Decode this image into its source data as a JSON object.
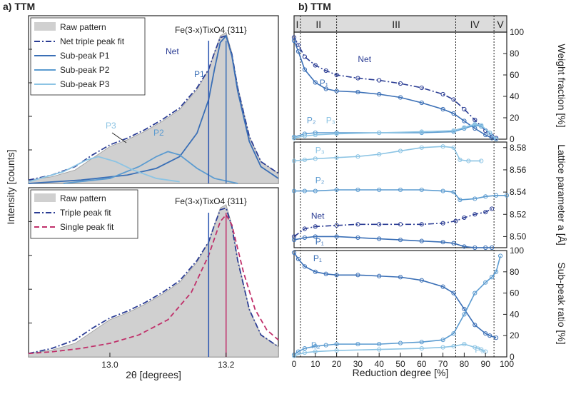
{
  "chart_data": [
    {
      "id": "a_top",
      "type": "line",
      "panel_title": "a) TTM",
      "annotation": "Fe(3-x)TixO4 {311}",
      "legend": [
        "Raw pattern",
        "Net triple peak fit",
        "Sub-peak P1",
        "Sub-peak P2",
        "Sub-peak P3"
      ],
      "peak_labels": [
        "Net",
        "P1",
        "P2",
        "P3"
      ],
      "xlim": [
        12.86,
        13.29
      ],
      "markers": [
        {
          "name": "Net",
          "x": 13.17
        },
        {
          "name": "P1",
          "x": 13.2
        }
      ],
      "series": [
        {
          "name": "Raw pattern",
          "x": [
            12.86,
            12.9,
            12.94,
            12.97,
            13.0,
            13.03,
            13.06,
            13.09,
            13.12,
            13.15,
            13.17,
            13.18,
            13.19,
            13.2,
            13.21,
            13.22,
            13.24,
            13.26,
            13.29
          ],
          "y": [
            0.02,
            0.04,
            0.08,
            0.15,
            0.22,
            0.26,
            0.31,
            0.37,
            0.44,
            0.56,
            0.68,
            0.78,
            0.88,
            0.9,
            0.78,
            0.58,
            0.28,
            0.13,
            0.06
          ]
        },
        {
          "name": "Net triple peak fit",
          "x": [
            12.86,
            12.9,
            12.94,
            12.97,
            13.0,
            13.03,
            13.06,
            13.09,
            13.12,
            13.15,
            13.17,
            13.18,
            13.19,
            13.2,
            13.21,
            13.22,
            13.24,
            13.26,
            13.29
          ],
          "y": [
            0.02,
            0.05,
            0.1,
            0.17,
            0.23,
            0.27,
            0.32,
            0.38,
            0.45,
            0.57,
            0.68,
            0.78,
            0.87,
            0.88,
            0.77,
            0.57,
            0.28,
            0.13,
            0.06
          ]
        },
        {
          "name": "Sub-peak P1",
          "x": [
            12.86,
            12.95,
            13.03,
            13.08,
            13.12,
            13.15,
            13.17,
            13.18,
            13.19,
            13.2,
            13.21,
            13.22,
            13.24,
            13.26,
            13.29
          ],
          "y": [
            0.0,
            0.02,
            0.05,
            0.09,
            0.16,
            0.3,
            0.5,
            0.68,
            0.84,
            0.88,
            0.76,
            0.55,
            0.25,
            0.1,
            0.03
          ]
        },
        {
          "name": "Sub-peak P2",
          "x": [
            12.92,
            13.0,
            13.05,
            13.08,
            13.1,
            13.12,
            13.15,
            13.18,
            13.22
          ],
          "y": [
            0.0,
            0.03,
            0.1,
            0.16,
            0.19,
            0.17,
            0.09,
            0.03,
            0.0
          ]
        },
        {
          "name": "Sub-peak P3",
          "x": [
            12.86,
            12.92,
            12.96,
            12.98,
            13.01,
            13.04,
            13.08,
            13.12
          ],
          "y": [
            0.01,
            0.07,
            0.14,
            0.16,
            0.13,
            0.08,
            0.03,
            0.01
          ]
        }
      ]
    },
    {
      "id": "a_bottom",
      "type": "line",
      "annotation": "Fe(3-x)TixO4 {311}",
      "legend": [
        "Raw pattern",
        "Triple peak fit",
        "Single peak fit"
      ],
      "xlabel": "2θ  [degrees]",
      "ylabel": "Intensity  [counts]",
      "xticks": [
        13.0,
        13.2
      ],
      "tick_labels": [
        "13.0",
        "13.2"
      ],
      "xlim": [
        12.86,
        13.29
      ],
      "markers": [
        {
          "name": "Triple",
          "x": 13.17
        },
        {
          "name": "Single",
          "x": 13.2
        }
      ],
      "series": [
        {
          "name": "Raw pattern",
          "x": [
            12.86,
            12.9,
            12.94,
            12.97,
            13.0,
            13.03,
            13.06,
            13.09,
            13.12,
            13.15,
            13.17,
            13.18,
            13.19,
            13.2,
            13.21,
            13.22,
            13.24,
            13.26,
            13.29
          ],
          "y": [
            0.02,
            0.04,
            0.08,
            0.15,
            0.22,
            0.26,
            0.31,
            0.37,
            0.44,
            0.56,
            0.68,
            0.78,
            0.88,
            0.9,
            0.78,
            0.58,
            0.28,
            0.13,
            0.06
          ]
        },
        {
          "name": "Triple peak fit",
          "x": [
            12.86,
            12.9,
            12.94,
            12.97,
            13.0,
            13.03,
            13.06,
            13.09,
            13.12,
            13.15,
            13.17,
            13.18,
            13.19,
            13.2,
            13.21,
            13.22,
            13.24,
            13.26,
            13.29
          ],
          "y": [
            0.02,
            0.05,
            0.1,
            0.17,
            0.23,
            0.27,
            0.32,
            0.38,
            0.45,
            0.57,
            0.68,
            0.78,
            0.87,
            0.88,
            0.77,
            0.57,
            0.28,
            0.13,
            0.06
          ]
        },
        {
          "name": "Single peak fit",
          "x": [
            12.86,
            12.9,
            12.95,
            13.0,
            13.05,
            13.1,
            13.14,
            13.17,
            13.19,
            13.2,
            13.21,
            13.23,
            13.25,
            13.27,
            13.29
          ],
          "y": [
            0.02,
            0.03,
            0.05,
            0.08,
            0.13,
            0.22,
            0.38,
            0.6,
            0.8,
            0.84,
            0.78,
            0.5,
            0.28,
            0.16,
            0.1
          ]
        }
      ]
    },
    {
      "id": "b_weight",
      "type": "scatter",
      "panel_title": "b) TTM",
      "ylabel": "Weight fraction [%]",
      "ylim": [
        0,
        100
      ],
      "yticks": [
        0,
        20,
        40,
        60,
        80,
        100
      ],
      "series": [
        {
          "name": "Net",
          "x": [
            0,
            2,
            5,
            10,
            15,
            20,
            30,
            40,
            50,
            60,
            70,
            75,
            80,
            85,
            90,
            93,
            95
          ],
          "y": [
            95,
            88,
            77,
            69,
            64,
            60,
            57,
            55,
            52,
            48,
            42,
            37,
            28,
            18,
            8,
            3,
            1
          ]
        },
        {
          "name": "P1",
          "x": [
            0,
            2,
            5,
            10,
            15,
            20,
            30,
            40,
            50,
            60,
            70,
            75,
            80,
            85,
            90,
            93,
            95
          ],
          "y": [
            92,
            82,
            65,
            53,
            47,
            45,
            44,
            42,
            39,
            34,
            28,
            24,
            17,
            10,
            4,
            1,
            0
          ]
        },
        {
          "name": "P2",
          "x": [
            0,
            5,
            10,
            20,
            40,
            60,
            75,
            80,
            85,
            88,
            92,
            95
          ],
          "y": [
            2,
            5,
            6,
            6,
            6,
            6,
            7,
            10,
            13,
            12,
            6,
            0
          ]
        },
        {
          "name": "P3",
          "x": [
            0,
            5,
            10,
            20,
            40,
            60,
            75,
            80,
            85,
            88,
            92,
            95
          ],
          "y": [
            1,
            3,
            4,
            5,
            6,
            7,
            8,
            11,
            14,
            13,
            6,
            0
          ]
        }
      ],
      "labels": [
        "Net",
        "P1",
        "P2",
        "P3"
      ]
    },
    {
      "id": "b_lattice",
      "type": "scatter",
      "ylabel": "Lattice parameter a [Å]",
      "ylim": [
        8.49,
        8.585
      ],
      "yticks": [
        8.5,
        8.52,
        8.54,
        8.56,
        8.58
      ],
      "series": [
        {
          "name": "P3",
          "x": [
            0,
            5,
            10,
            20,
            30,
            40,
            50,
            60,
            70,
            75,
            78,
            82,
            88
          ],
          "y": [
            8.568,
            8.569,
            8.57,
            8.571,
            8.572,
            8.574,
            8.577,
            8.58,
            8.581,
            8.58,
            8.569,
            8.568,
            8.568
          ]
        },
        {
          "name": "P2",
          "x": [
            0,
            5,
            10,
            20,
            30,
            40,
            50,
            60,
            70,
            75,
            78,
            85,
            90,
            95,
            100
          ],
          "y": [
            8.541,
            8.541,
            8.541,
            8.542,
            8.542,
            8.542,
            8.542,
            8.542,
            8.541,
            8.54,
            8.533,
            8.534,
            8.536,
            8.537,
            8.537
          ]
        },
        {
          "name": "Net",
          "x": [
            0,
            5,
            10,
            20,
            30,
            40,
            50,
            60,
            70,
            76,
            80,
            85,
            90,
            93
          ],
          "y": [
            8.5,
            8.507,
            8.509,
            8.51,
            8.511,
            8.511,
            8.511,
            8.511,
            8.512,
            8.514,
            8.517,
            8.52,
            8.522,
            8.525
          ]
        },
        {
          "name": "P1",
          "x": [
            0,
            5,
            10,
            20,
            30,
            40,
            50,
            60,
            70,
            75,
            80,
            85,
            90,
            93
          ],
          "y": [
            8.497,
            8.499,
            8.5,
            8.5,
            8.499,
            8.498,
            8.497,
            8.496,
            8.495,
            8.494,
            8.491,
            8.49,
            8.49,
            8.49
          ]
        }
      ],
      "labels": [
        "P3",
        "P2",
        "Net",
        "P1"
      ]
    },
    {
      "id": "b_ratio",
      "type": "scatter",
      "ylabel": "Sub-peak ratio [%]",
      "xlabel": "Reduction degree [%]",
      "xlim": [
        0,
        100
      ],
      "xticks": [
        0,
        10,
        20,
        30,
        40,
        50,
        60,
        70,
        80,
        90,
        100
      ],
      "ylim": [
        0,
        100
      ],
      "yticks": [
        0,
        20,
        40,
        60,
        80,
        100
      ],
      "series": [
        {
          "name": "P1",
          "x": [
            0,
            2,
            5,
            10,
            15,
            20,
            30,
            40,
            50,
            60,
            70,
            75,
            80,
            85,
            90,
            92,
            95
          ],
          "y": [
            98,
            92,
            85,
            80,
            78,
            77,
            77,
            76,
            75,
            72,
            66,
            60,
            45,
            30,
            22,
            20,
            18
          ]
        },
        {
          "name": "P2",
          "x": [
            0,
            2,
            5,
            10,
            15,
            20,
            30,
            40,
            50,
            60,
            70,
            75,
            80,
            85,
            90,
            93,
            95,
            97
          ],
          "y": [
            2,
            5,
            8,
            10,
            11,
            12,
            12,
            12,
            13,
            14,
            16,
            22,
            40,
            60,
            70,
            75,
            80,
            95
          ]
        },
        {
          "name": "P3",
          "x": [
            0,
            5,
            10,
            20,
            40,
            60,
            70,
            75,
            80,
            85,
            88,
            90
          ],
          "y": [
            1,
            4,
            5,
            6,
            7,
            8,
            9,
            10,
            12,
            9,
            7,
            5
          ]
        }
      ],
      "labels": [
        "P1",
        "P2",
        "P3"
      ]
    }
  ],
  "regions": {
    "labels": [
      "I",
      "II",
      "III",
      "IV",
      "V"
    ],
    "boundaries": [
      0,
      3,
      20,
      76,
      94,
      100
    ]
  },
  "colors": {
    "raw_fill": "#d0d0d0",
    "net": "#2b3d94",
    "p1": "#3a6fb6",
    "p2": "#5b9bd0",
    "p3": "#8cc4e4",
    "single": "#c0306a",
    "header": "#dcdcdc"
  }
}
